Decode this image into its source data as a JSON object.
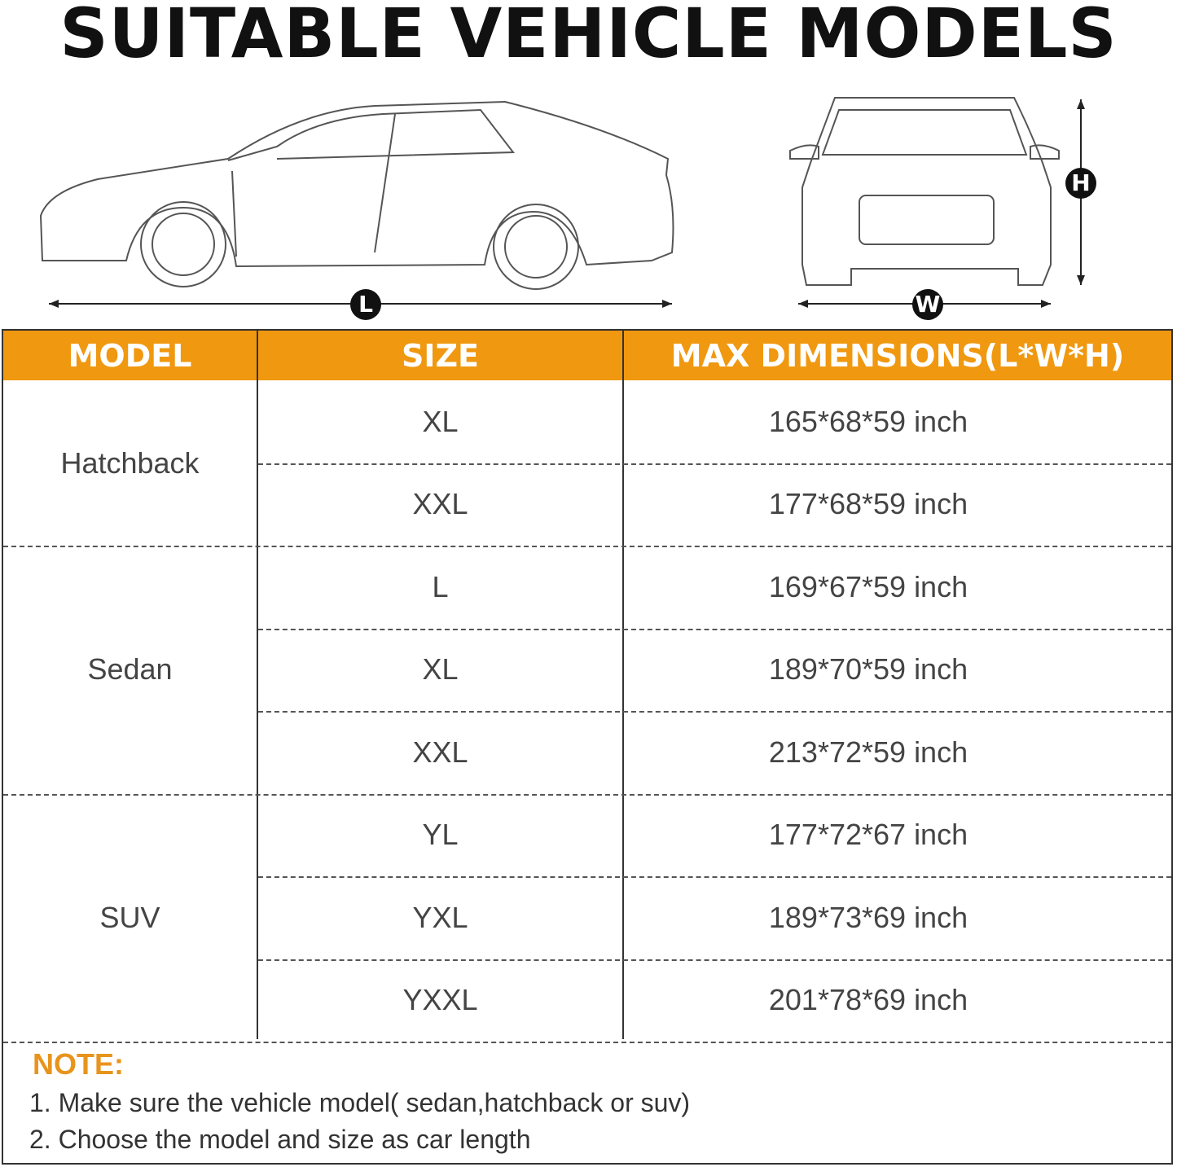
{
  "title": "SUITABLE VEHICLE MODELS",
  "dimension_labels": {
    "length": "L",
    "width": "W",
    "height": "H"
  },
  "colors": {
    "header_bg": "#f0980f",
    "note_title": "#e8941c"
  },
  "table": {
    "headers": [
      "MODEL",
      "SIZE",
      "MAX DIMENSIONS(L*W*H)"
    ],
    "groups": [
      {
        "model": "Hatchback",
        "rows": [
          {
            "size": "XL",
            "dims": "165*68*59 inch"
          },
          {
            "size": "XXL",
            "dims": "177*68*59 inch"
          }
        ]
      },
      {
        "model": "Sedan",
        "rows": [
          {
            "size": "L",
            "dims": "169*67*59 inch"
          },
          {
            "size": "XL",
            "dims": "189*70*59 inch"
          },
          {
            "size": "XXL",
            "dims": "213*72*59 inch"
          }
        ]
      },
      {
        "model": "SUV",
        "rows": [
          {
            "size": "YL",
            "dims": "177*72*67 inch"
          },
          {
            "size": "YXL",
            "dims": "189*73*69 inch"
          },
          {
            "size": "YXXL",
            "dims": "201*78*69 inch"
          }
        ]
      }
    ]
  },
  "note": {
    "title": "NOTE:",
    "lines": [
      "1. Make sure the vehicle model( sedan,hatchback or suv)",
      "2. Choose the model and size as car length"
    ]
  }
}
